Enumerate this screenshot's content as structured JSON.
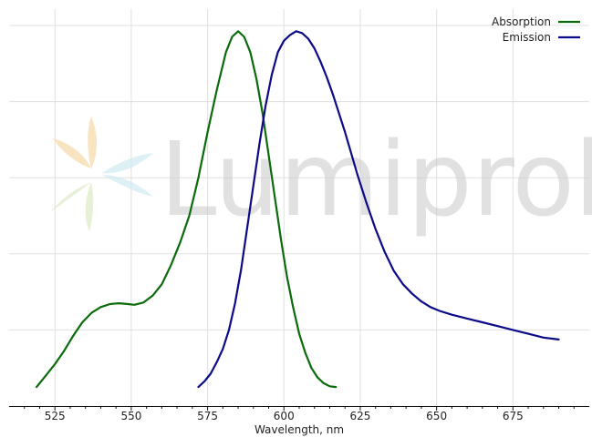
{
  "watermark": {
    "text": "Lumiprobe"
  },
  "chart_data": {
    "type": "line",
    "xlabel": "Wavelength, nm",
    "ylabel": "",
    "xlim": [
      510,
      700
    ],
    "ylim": [
      0,
      1.0
    ],
    "xticks": [
      525,
      550,
      575,
      600,
      625,
      650,
      675
    ],
    "grid": true,
    "legend": "top-right",
    "series": [
      {
        "name": "Absorption",
        "color": "#0a6b0a",
        "points": [
          [
            519,
            0.05
          ],
          [
            522,
            0.08
          ],
          [
            525,
            0.11
          ],
          [
            528,
            0.145
          ],
          [
            531,
            0.185
          ],
          [
            534,
            0.22
          ],
          [
            537,
            0.245
          ],
          [
            540,
            0.26
          ],
          [
            543,
            0.268
          ],
          [
            546,
            0.27
          ],
          [
            549,
            0.268
          ],
          [
            551,
            0.266
          ],
          [
            554,
            0.272
          ],
          [
            557,
            0.29
          ],
          [
            560,
            0.32
          ],
          [
            563,
            0.37
          ],
          [
            566,
            0.43
          ],
          [
            569,
            0.5
          ],
          [
            572,
            0.6
          ],
          [
            575,
            0.72
          ],
          [
            578,
            0.83
          ],
          [
            581,
            0.93
          ],
          [
            583,
            0.97
          ],
          [
            585,
            0.985
          ],
          [
            587,
            0.97
          ],
          [
            589,
            0.93
          ],
          [
            591,
            0.86
          ],
          [
            593,
            0.77
          ],
          [
            595,
            0.66
          ],
          [
            597,
            0.55
          ],
          [
            599,
            0.44
          ],
          [
            601,
            0.34
          ],
          [
            603,
            0.26
          ],
          [
            605,
            0.19
          ],
          [
            607,
            0.14
          ],
          [
            609,
            0.1
          ],
          [
            611,
            0.075
          ],
          [
            613,
            0.06
          ],
          [
            615,
            0.052
          ],
          [
            617,
            0.05
          ]
        ]
      },
      {
        "name": "Emission",
        "color": "#0b0b8a",
        "points": [
          [
            572,
            0.05
          ],
          [
            574,
            0.065
          ],
          [
            576,
            0.085
          ],
          [
            578,
            0.115
          ],
          [
            580,
            0.15
          ],
          [
            582,
            0.2
          ],
          [
            584,
            0.27
          ],
          [
            586,
            0.36
          ],
          [
            588,
            0.47
          ],
          [
            590,
            0.58
          ],
          [
            592,
            0.69
          ],
          [
            594,
            0.79
          ],
          [
            596,
            0.87
          ],
          [
            598,
            0.93
          ],
          [
            600,
            0.96
          ],
          [
            602,
            0.975
          ],
          [
            604,
            0.985
          ],
          [
            606,
            0.98
          ],
          [
            608,
            0.965
          ],
          [
            610,
            0.94
          ],
          [
            612,
            0.905
          ],
          [
            614,
            0.865
          ],
          [
            616,
            0.82
          ],
          [
            618,
            0.77
          ],
          [
            620,
            0.72
          ],
          [
            622,
            0.665
          ],
          [
            624,
            0.61
          ],
          [
            627,
            0.535
          ],
          [
            630,
            0.465
          ],
          [
            633,
            0.405
          ],
          [
            636,
            0.355
          ],
          [
            639,
            0.32
          ],
          [
            642,
            0.295
          ],
          [
            645,
            0.275
          ],
          [
            648,
            0.26
          ],
          [
            651,
            0.25
          ],
          [
            655,
            0.24
          ],
          [
            660,
            0.23
          ],
          [
            665,
            0.22
          ],
          [
            670,
            0.21
          ],
          [
            675,
            0.2
          ],
          [
            680,
            0.19
          ],
          [
            685,
            0.18
          ],
          [
            690,
            0.175
          ]
        ]
      }
    ]
  }
}
